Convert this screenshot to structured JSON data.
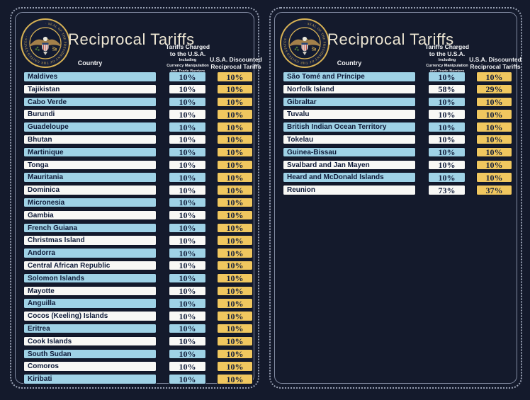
{
  "title": "Reciprocal Tariffs",
  "seal_label": "Seal of the President of the United States",
  "colors": {
    "background": "#141a2c",
    "row_blue": "#9fd2e6",
    "row_white": "#f8f8f5",
    "discounted_gold": "#f0c75f",
    "text_navy": "#0e1a38",
    "title_cream": "#ece5d2",
    "seal_gold": "#d8b254"
  },
  "header": {
    "country": "Country",
    "charged_title_line1": "Tariffs Charged",
    "charged_title_line2": "to the U.S.A.",
    "charged_sub_line1": "Including",
    "charged_sub_line2": "Currency Manipulation",
    "charged_sub_line3": "and Trade Barriers",
    "discounted_line1": "U.S.A. Discounted",
    "discounted_line2": "Reciprocal Tariffs"
  },
  "chart_data": {
    "type": "table",
    "title": "Reciprocal Tariffs",
    "columns": [
      "Country",
      "Tariffs Charged to the U.S.A. Including Currency Manipulation and Trade Barriers",
      "U.S.A. Discounted Reciprocal Tariffs"
    ],
    "panels": [
      {
        "rows": [
          [
            "Maldives",
            "10%",
            "10%"
          ],
          [
            "Tajikistan",
            "10%",
            "10%"
          ],
          [
            "Cabo Verde",
            "10%",
            "10%"
          ],
          [
            "Burundi",
            "10%",
            "10%"
          ],
          [
            "Guadeloupe",
            "10%",
            "10%"
          ],
          [
            "Bhutan",
            "10%",
            "10%"
          ],
          [
            "Martinique",
            "10%",
            "10%"
          ],
          [
            "Tonga",
            "10%",
            "10%"
          ],
          [
            "Mauritania",
            "10%",
            "10%"
          ],
          [
            "Dominica",
            "10%",
            "10%"
          ],
          [
            "Micronesia",
            "10%",
            "10%"
          ],
          [
            "Gambia",
            "10%",
            "10%"
          ],
          [
            "French Guiana",
            "10%",
            "10%"
          ],
          [
            "Christmas Island",
            "10%",
            "10%"
          ],
          [
            "Andorra",
            "10%",
            "10%"
          ],
          [
            "Central African Republic",
            "10%",
            "10%"
          ],
          [
            "Solomon Islands",
            "10%",
            "10%"
          ],
          [
            "Mayotte",
            "10%",
            "10%"
          ],
          [
            "Anguilla",
            "10%",
            "10%"
          ],
          [
            "Cocos (Keeling) Islands",
            "10%",
            "10%"
          ],
          [
            "Eritrea",
            "10%",
            "10%"
          ],
          [
            "Cook Islands",
            "10%",
            "10%"
          ],
          [
            "South Sudan",
            "10%",
            "10%"
          ],
          [
            "Comoros",
            "10%",
            "10%"
          ],
          [
            "Kiribati",
            "10%",
            "10%"
          ]
        ]
      },
      {
        "rows": [
          [
            "São Tomé and Príncipe",
            "10%",
            "10%"
          ],
          [
            "Norfolk Island",
            "58%",
            "29%"
          ],
          [
            "Gibraltar",
            "10%",
            "10%"
          ],
          [
            "Tuvalu",
            "10%",
            "10%"
          ],
          [
            "British Indian Ocean Territory",
            "10%",
            "10%"
          ],
          [
            "Tokelau",
            "10%",
            "10%"
          ],
          [
            "Guinea-Bissau",
            "10%",
            "10%"
          ],
          [
            "Svalbard and Jan Mayen",
            "10%",
            "10%"
          ],
          [
            "Heard and McDonald Islands",
            "10%",
            "10%"
          ],
          [
            "Reunion",
            "73%",
            "37%"
          ]
        ]
      }
    ]
  }
}
